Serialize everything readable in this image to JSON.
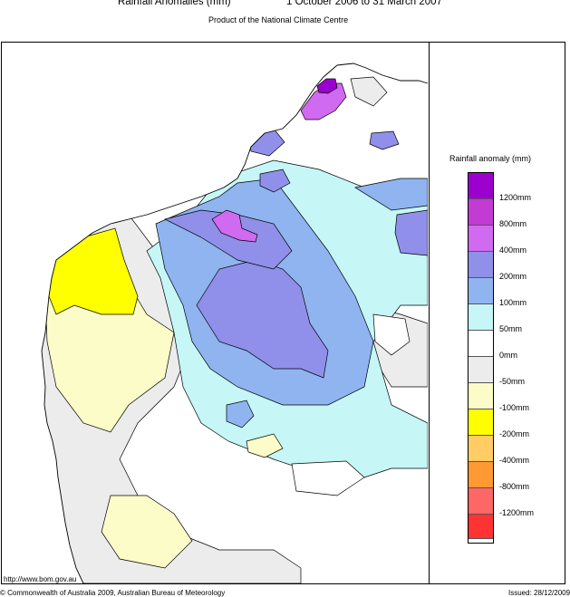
{
  "header": {
    "title_left": "Rainfall Anomalies (mm)",
    "title_right": "1 October 2006 to 31 March 2007",
    "subtitle": "Product of the National Climate Centre"
  },
  "legend": {
    "title": "Rainfall anomaly (mm)",
    "swatches": [
      "#9b00cf",
      "#c23cd3",
      "#d06af0",
      "#9090ea",
      "#8fb4f0",
      "#c6f6f6",
      "#ffffff",
      "#ececec",
      "#fcfcc8",
      "#ffff00",
      "#ffcc66",
      "#ff9933",
      "#ff6666",
      "#ff3333"
    ],
    "labels": [
      "1200mm",
      "800mm",
      "400mm",
      "200mm",
      "100mm",
      "50mm",
      "0mm",
      "-50mm",
      "-100mm",
      "-200mm",
      "-400mm",
      "-800mm",
      "-1200mm"
    ]
  },
  "map_colors": {
    "purple": "#9b00cf",
    "magenta": "#d06af0",
    "violet": "#9090ea",
    "blue": "#8fb4f0",
    "cyan": "#c6f6f6",
    "white": "#ffffff",
    "grey": "#ececec",
    "cream": "#fcfcc8",
    "yellow": "#ffff00"
  },
  "footer": {
    "url": "http://www.bom.gov.au",
    "copyright": "© Commonwealth of Australia 2009, Australian Bureau of Meteorology",
    "issued": "Issued: 28/12/2009"
  }
}
